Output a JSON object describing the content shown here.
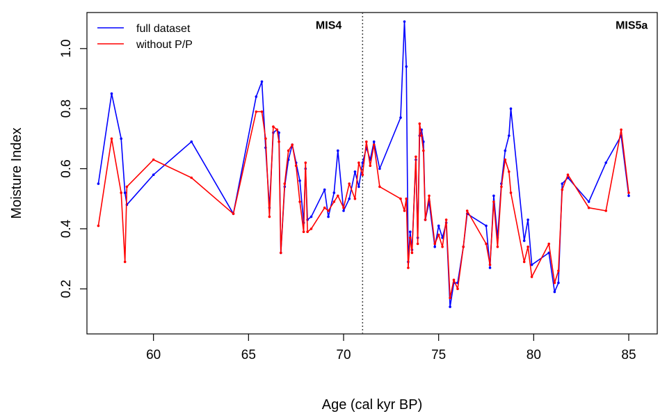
{
  "chart_data": {
    "type": "line",
    "xlabel": "Age (cal kyr BP)",
    "ylabel": "Moisture Index",
    "xlim": [
      56.5,
      86.5
    ],
    "ylim": [
      0.05,
      1.12
    ],
    "x_ticks": [
      60,
      65,
      70,
      75,
      80,
      85
    ],
    "y_ticks": [
      0.2,
      0.4,
      0.6,
      0.8,
      1.0
    ],
    "x_tick_labels": [
      "60",
      "65",
      "70",
      "75",
      "80",
      "85"
    ],
    "y_tick_labels": [
      "0.2",
      "0.4",
      "0.6",
      "0.8",
      "1.0"
    ],
    "grid": false,
    "legend": {
      "position": "top-left"
    },
    "annotations": [
      {
        "text": "MIS4",
        "x": 69.9,
        "y": 1.08
      },
      {
        "text": "MIS5a",
        "x": 86.0,
        "y": 1.08
      }
    ],
    "vline": {
      "x": 71.0,
      "style": "dotted"
    },
    "series": [
      {
        "name": "full dataset",
        "color": "#0000ff",
        "x": [
          57.1,
          57.8,
          58.3,
          58.5,
          58.6,
          60.0,
          62.0,
          64.2,
          65.4,
          65.7,
          65.9,
          66.1,
          66.3,
          66.5,
          66.6,
          66.7,
          66.9,
          67.1,
          67.3,
          67.5,
          67.7,
          67.9,
          68.0,
          68.1,
          68.3,
          69.0,
          69.2,
          69.5,
          69.7,
          70.0,
          70.3,
          70.6,
          70.8,
          71.0,
          71.2,
          71.4,
          71.6,
          71.9,
          73.0,
          73.2,
          73.3,
          73.4,
          73.5,
          73.6,
          73.8,
          73.9,
          74.0,
          74.1,
          74.2,
          74.3,
          74.5,
          74.8,
          75.0,
          75.2,
          75.4,
          75.6,
          75.8,
          76.0,
          76.3,
          76.5,
          77.5,
          77.7,
          77.9,
          78.1,
          78.3,
          78.5,
          78.7,
          78.8,
          79.5,
          79.7,
          79.9,
          80.8,
          81.1,
          81.3,
          81.5,
          81.8,
          82.9,
          83.8,
          84.6,
          85.0
        ],
        "y": [
          0.55,
          0.85,
          0.7,
          0.52,
          0.48,
          0.58,
          0.69,
          0.45,
          0.84,
          0.89,
          0.67,
          0.47,
          0.72,
          0.73,
          0.72,
          0.32,
          0.54,
          0.63,
          0.68,
          0.62,
          0.56,
          0.42,
          0.6,
          0.43,
          0.44,
          0.53,
          0.44,
          0.52,
          0.66,
          0.46,
          0.5,
          0.59,
          0.54,
          0.62,
          0.67,
          0.63,
          0.69,
          0.6,
          0.77,
          1.09,
          0.94,
          0.29,
          0.39,
          0.33,
          0.63,
          0.37,
          0.71,
          0.73,
          0.69,
          0.43,
          0.49,
          0.34,
          0.41,
          0.37,
          0.42,
          0.14,
          0.22,
          0.22,
          0.34,
          0.45,
          0.41,
          0.27,
          0.51,
          0.37,
          0.55,
          0.66,
          0.71,
          0.8,
          0.36,
          0.43,
          0.28,
          0.32,
          0.19,
          0.22,
          0.55,
          0.57,
          0.49,
          0.62,
          0.71,
          0.51
        ]
      },
      {
        "name": "without P/P",
        "color": "#ff0000",
        "x": [
          57.1,
          57.8,
          58.3,
          58.5,
          58.6,
          60.0,
          62.0,
          64.2,
          65.4,
          65.7,
          65.9,
          66.1,
          66.3,
          66.5,
          66.6,
          66.7,
          66.9,
          67.1,
          67.3,
          67.5,
          67.7,
          67.9,
          68.0,
          68.1,
          68.3,
          69.0,
          69.2,
          69.5,
          69.7,
          70.0,
          70.3,
          70.6,
          70.8,
          71.0,
          71.2,
          71.4,
          71.6,
          71.9,
          73.0,
          73.2,
          73.3,
          73.4,
          73.5,
          73.6,
          73.8,
          73.9,
          74.0,
          74.1,
          74.2,
          74.3,
          74.5,
          74.8,
          75.0,
          75.2,
          75.4,
          75.6,
          75.8,
          76.0,
          76.3,
          76.5,
          77.5,
          77.7,
          77.9,
          78.1,
          78.3,
          78.5,
          78.7,
          78.8,
          79.5,
          79.7,
          79.9,
          80.8,
          81.1,
          81.3,
          81.5,
          81.8,
          82.9,
          83.8,
          84.6,
          85.0
        ],
        "y": [
          0.41,
          0.7,
          0.52,
          0.29,
          0.54,
          0.63,
          0.57,
          0.45,
          0.79,
          0.79,
          0.7,
          0.44,
          0.74,
          0.73,
          0.69,
          0.32,
          0.55,
          0.66,
          0.68,
          0.61,
          0.49,
          0.39,
          0.62,
          0.39,
          0.4,
          0.47,
          0.46,
          0.49,
          0.51,
          0.47,
          0.55,
          0.5,
          0.62,
          0.58,
          0.69,
          0.61,
          0.68,
          0.54,
          0.5,
          0.46,
          0.5,
          0.27,
          0.37,
          0.32,
          0.64,
          0.35,
          0.75,
          0.71,
          0.66,
          0.43,
          0.51,
          0.35,
          0.38,
          0.34,
          0.43,
          0.17,
          0.23,
          0.2,
          0.34,
          0.46,
          0.35,
          0.28,
          0.49,
          0.34,
          0.54,
          0.63,
          0.59,
          0.52,
          0.29,
          0.34,
          0.24,
          0.35,
          0.22,
          0.26,
          0.53,
          0.58,
          0.47,
          0.46,
          0.73,
          0.52
        ]
      }
    ]
  }
}
